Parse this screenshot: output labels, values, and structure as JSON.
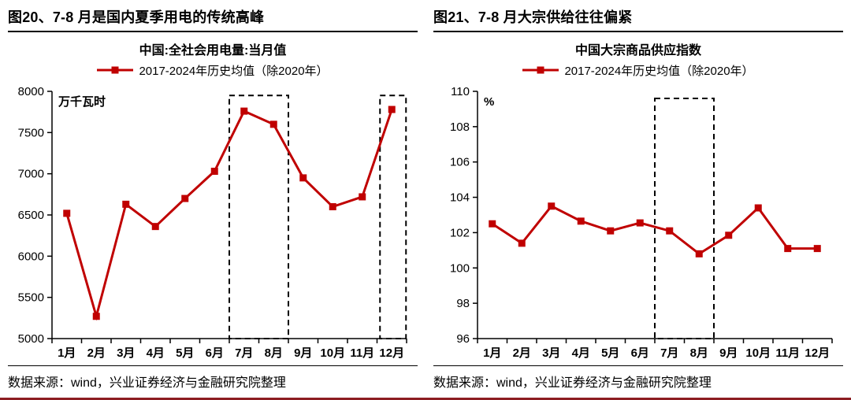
{
  "accent_color": "#C00000",
  "footer_line_color": "#8C1D22",
  "panels": [
    {
      "figure_title": "图20、7-8 月是国内夏季用电的传统高峰",
      "source": "数据来源：wind，兴业证券经济与金融研究院整理"
    },
    {
      "figure_title": "图21、7-8 月大宗供给往往偏紧",
      "source": "数据来源：wind，兴业证券经济与金融研究院整理"
    }
  ],
  "chart_data": [
    {
      "type": "line",
      "title": "中国:全社会用电量:当月值",
      "unit_label": "万千瓦时",
      "legend_position": "top",
      "grid": false,
      "categories": [
        "1月",
        "2月",
        "3月",
        "4月",
        "5月",
        "6月",
        "7月",
        "8月",
        "9月",
        "10月",
        "11月",
        "12月"
      ],
      "series": [
        {
          "name": "2017-2024年历史均值（除2020年）",
          "values": [
            6520,
            5270,
            6630,
            6360,
            6700,
            7030,
            7760,
            7600,
            6950,
            6600,
            6720,
            7780
          ]
        }
      ],
      "ylim": [
        5000,
        8000
      ],
      "ytick_step": 500,
      "highlight_boxes": [
        {
          "x_from": 5.5,
          "x_to": 7.5,
          "y_from": 5000,
          "y_to": 7950
        },
        {
          "x_from": 10.6,
          "x_to": 11.48,
          "y_from": 5000,
          "y_to": 7950
        }
      ]
    },
    {
      "type": "line",
      "title": "中国大宗商品供应指数",
      "unit_label": "%",
      "legend_position": "top",
      "grid": false,
      "categories": [
        "1月",
        "2月",
        "3月",
        "4月",
        "5月",
        "6月",
        "7月",
        "8月",
        "9月",
        "10月",
        "11月",
        "12月"
      ],
      "series": [
        {
          "name": "2017-2024年历史均值（除2020年）",
          "values": [
            102.5,
            101.4,
            103.5,
            102.65,
            102.1,
            102.55,
            102.1,
            100.8,
            101.85,
            103.4,
            101.1,
            101.1
          ]
        }
      ],
      "ylim": [
        96,
        110
      ],
      "ytick_step": 2,
      "highlight_boxes": [
        {
          "x_from": 5.5,
          "x_to": 7.5,
          "y_from": 96,
          "y_to": 109.6
        }
      ]
    }
  ]
}
